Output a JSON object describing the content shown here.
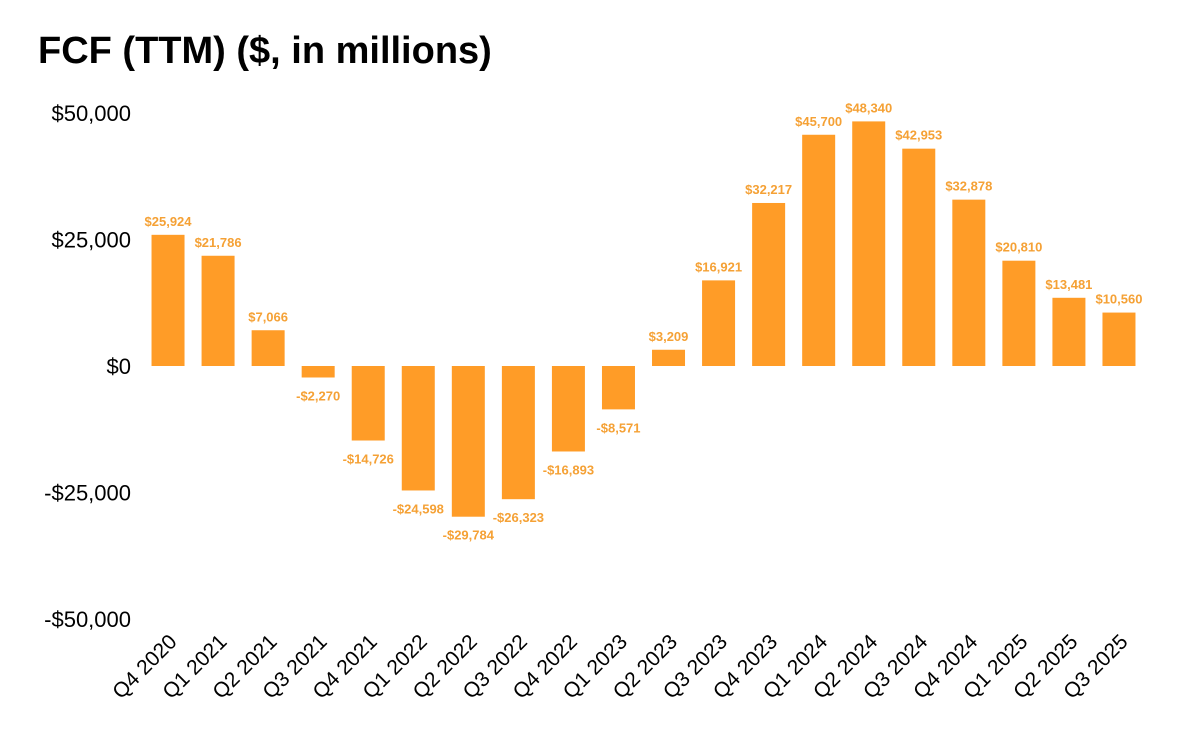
{
  "chart_data": {
    "type": "bar",
    "title": "FCF (TTM) ($, in millions)",
    "xlabel": "",
    "ylabel": "",
    "ylim": [
      -50000,
      50000
    ],
    "yticks": [
      50000,
      25000,
      0,
      -25000,
      -50000
    ],
    "ytick_labels": [
      "$50,000",
      "$25,000",
      "$0",
      "-$25,000",
      "-$50,000"
    ],
    "grid": false,
    "legend": "none",
    "bar_color": "#FF9C27",
    "label_color": "#F5A135",
    "categories": [
      "Q4 2020",
      "Q1 2021",
      "Q2 2021",
      "Q3 2021",
      "Q4 2021",
      "Q1 2022",
      "Q2 2022",
      "Q3 2022",
      "Q4 2022",
      "Q1 2023",
      "Q2 2023",
      "Q3 2023",
      "Q4 2023",
      "Q1 2024",
      "Q2 2024",
      "Q3 2024",
      "Q4 2024",
      "Q1 2025",
      "Q2 2025",
      "Q3 2025"
    ],
    "values": [
      25924,
      21786,
      7066,
      -2270,
      -14726,
      -24598,
      -29784,
      -26323,
      -16893,
      -8571,
      3209,
      16921,
      32217,
      45700,
      48340,
      42953,
      32878,
      20810,
      13481,
      10560
    ],
    "data_labels": [
      "$25,924",
      "$21,786",
      "$7,066",
      "-$2,270",
      "-$14,726",
      "-$24,598",
      "-$29,784",
      "-$26,323",
      "-$16,893",
      "-$8,571",
      "$3,209",
      "$16,921",
      "$32,217",
      "$45,700",
      "$48,340",
      "$42,953",
      "$32,878",
      "$20,810",
      "$13,481",
      "$10,560"
    ]
  }
}
